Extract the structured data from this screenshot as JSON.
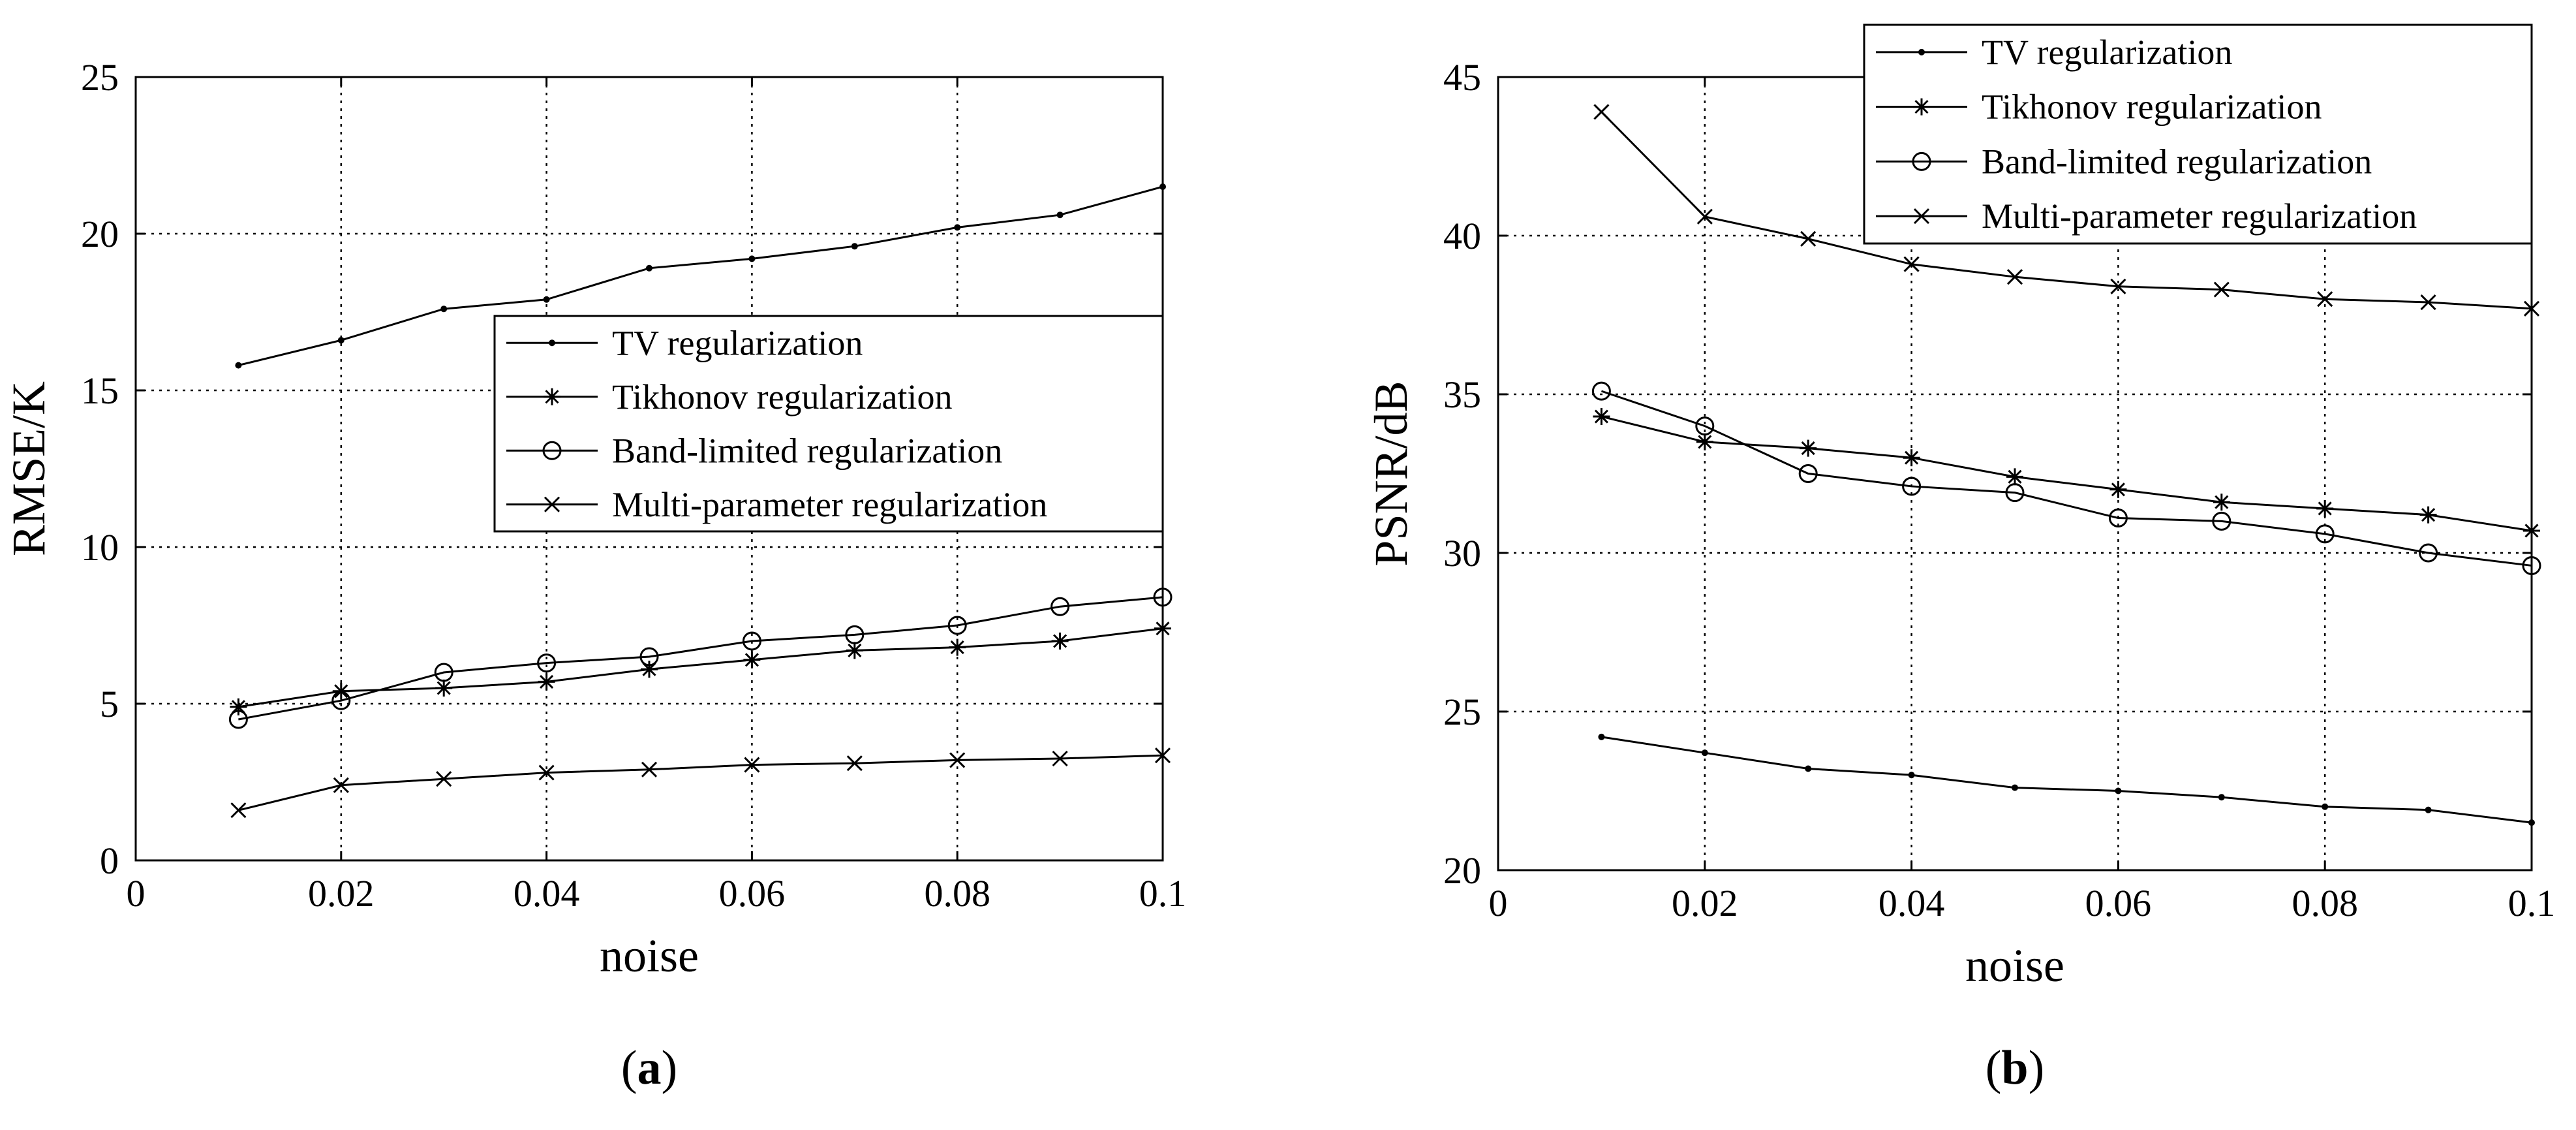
{
  "style": {
    "line_color": "#000000",
    "grid_color": "#000000",
    "background": "#ffffff"
  },
  "chart_data": [
    {
      "type": "line",
      "panel_label": "a",
      "title": "",
      "xlabel": "noise",
      "ylabel": "RMSE/K",
      "xlim": [
        0,
        0.1
      ],
      "ylim": [
        0,
        25
      ],
      "xticks": [
        0,
        0.02,
        0.04,
        0.06,
        0.08,
        0.1
      ],
      "xtick_labels": [
        "0",
        "0.02",
        "0.04",
        "0.06",
        "0.08",
        "0.1"
      ],
      "yticks": [
        0,
        5,
        10,
        15,
        20,
        25
      ],
      "ytick_labels": [
        "0",
        "5",
        "10",
        "15",
        "20",
        "25"
      ],
      "grid": true,
      "legend_position": "right-middle",
      "x": [
        0.01,
        0.02,
        0.03,
        0.04,
        0.05,
        0.06,
        0.07,
        0.08,
        0.09,
        0.1
      ],
      "series": [
        {
          "name": "TV regularization",
          "marker": "dot",
          "values": [
            15.8,
            16.6,
            17.6,
            17.9,
            18.9,
            19.2,
            19.6,
            20.2,
            20.6,
            21.5
          ]
        },
        {
          "name": "Tikhonov regularization",
          "marker": "asterisk",
          "values": [
            4.9,
            5.4,
            5.5,
            5.7,
            6.1,
            6.4,
            6.7,
            6.8,
            7.0,
            7.4
          ]
        },
        {
          "name": "Band-limited regularization",
          "marker": "circle",
          "values": [
            4.5,
            5.1,
            6.0,
            6.3,
            6.5,
            7.0,
            7.2,
            7.5,
            8.1,
            8.4
          ]
        },
        {
          "name": "Multi-parameter regularization",
          "marker": "x",
          "values": [
            1.6,
            2.4,
            2.6,
            2.8,
            2.9,
            3.05,
            3.1,
            3.2,
            3.25,
            3.35
          ]
        }
      ]
    },
    {
      "type": "line",
      "panel_label": "b",
      "title": "",
      "xlabel": "noise",
      "ylabel": "PSNR/dB",
      "xlim": [
        0,
        0.1
      ],
      "ylim": [
        20,
        45
      ],
      "xticks": [
        0,
        0.02,
        0.04,
        0.06,
        0.08,
        0.1
      ],
      "xtick_labels": [
        "0",
        "0.02",
        "0.04",
        "0.06",
        "0.08",
        "0.1"
      ],
      "yticks": [
        20,
        25,
        30,
        35,
        40,
        45
      ],
      "ytick_labels": [
        "20",
        "25",
        "30",
        "35",
        "40",
        "45"
      ],
      "grid": true,
      "legend_position": "top-right",
      "x": [
        0.01,
        0.02,
        0.03,
        0.04,
        0.05,
        0.06,
        0.07,
        0.08,
        0.09,
        0.1
      ],
      "series": [
        {
          "name": "TV regularization",
          "marker": "dot",
          "values": [
            24.2,
            23.7,
            23.2,
            23.0,
            22.6,
            22.5,
            22.3,
            22.0,
            21.9,
            21.5
          ]
        },
        {
          "name": "Tikhonov regularization",
          "marker": "asterisk",
          "values": [
            34.3,
            33.5,
            33.3,
            33.0,
            32.4,
            32.0,
            31.6,
            31.4,
            31.2,
            30.7
          ]
        },
        {
          "name": "Band-limited regularization",
          "marker": "circle",
          "values": [
            35.1,
            34.0,
            32.5,
            32.1,
            31.9,
            31.1,
            31.0,
            30.6,
            30.0,
            29.6
          ]
        },
        {
          "name": "Multi-parameter regularization",
          "marker": "x",
          "values": [
            43.9,
            40.6,
            39.9,
            39.1,
            38.7,
            38.4,
            38.3,
            38.0,
            37.9,
            37.7
          ]
        }
      ]
    }
  ]
}
